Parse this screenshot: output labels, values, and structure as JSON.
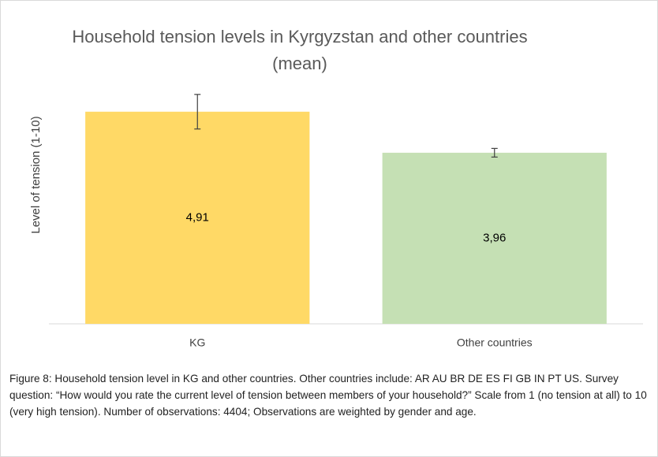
{
  "chart_data": {
    "type": "bar",
    "title": "Household tension levels in Kyrgyzstan and other countries (mean)",
    "y_label": "Level of tension (1-10)",
    "categories": [
      "KG",
      "Other countries"
    ],
    "values": [
      4.91,
      3.96
    ],
    "value_labels": [
      "4,91",
      "3,96"
    ],
    "errors": [
      0.4,
      0.1
    ],
    "colors": [
      "#ffd966",
      "#c5e0b4"
    ],
    "ylim": [
      0,
      6
    ],
    "caption": "Figure 8: Household tension level in KG and other countries. Other countries include: AR AU BR DE ES FI GB IN PT US.  Survey question: “How would you rate the current level of tension between members of your household?” Scale from 1 (no tension at all) to 10 (very high tension). Number of observations: 4404; Observations are weighted by gender and age."
  }
}
